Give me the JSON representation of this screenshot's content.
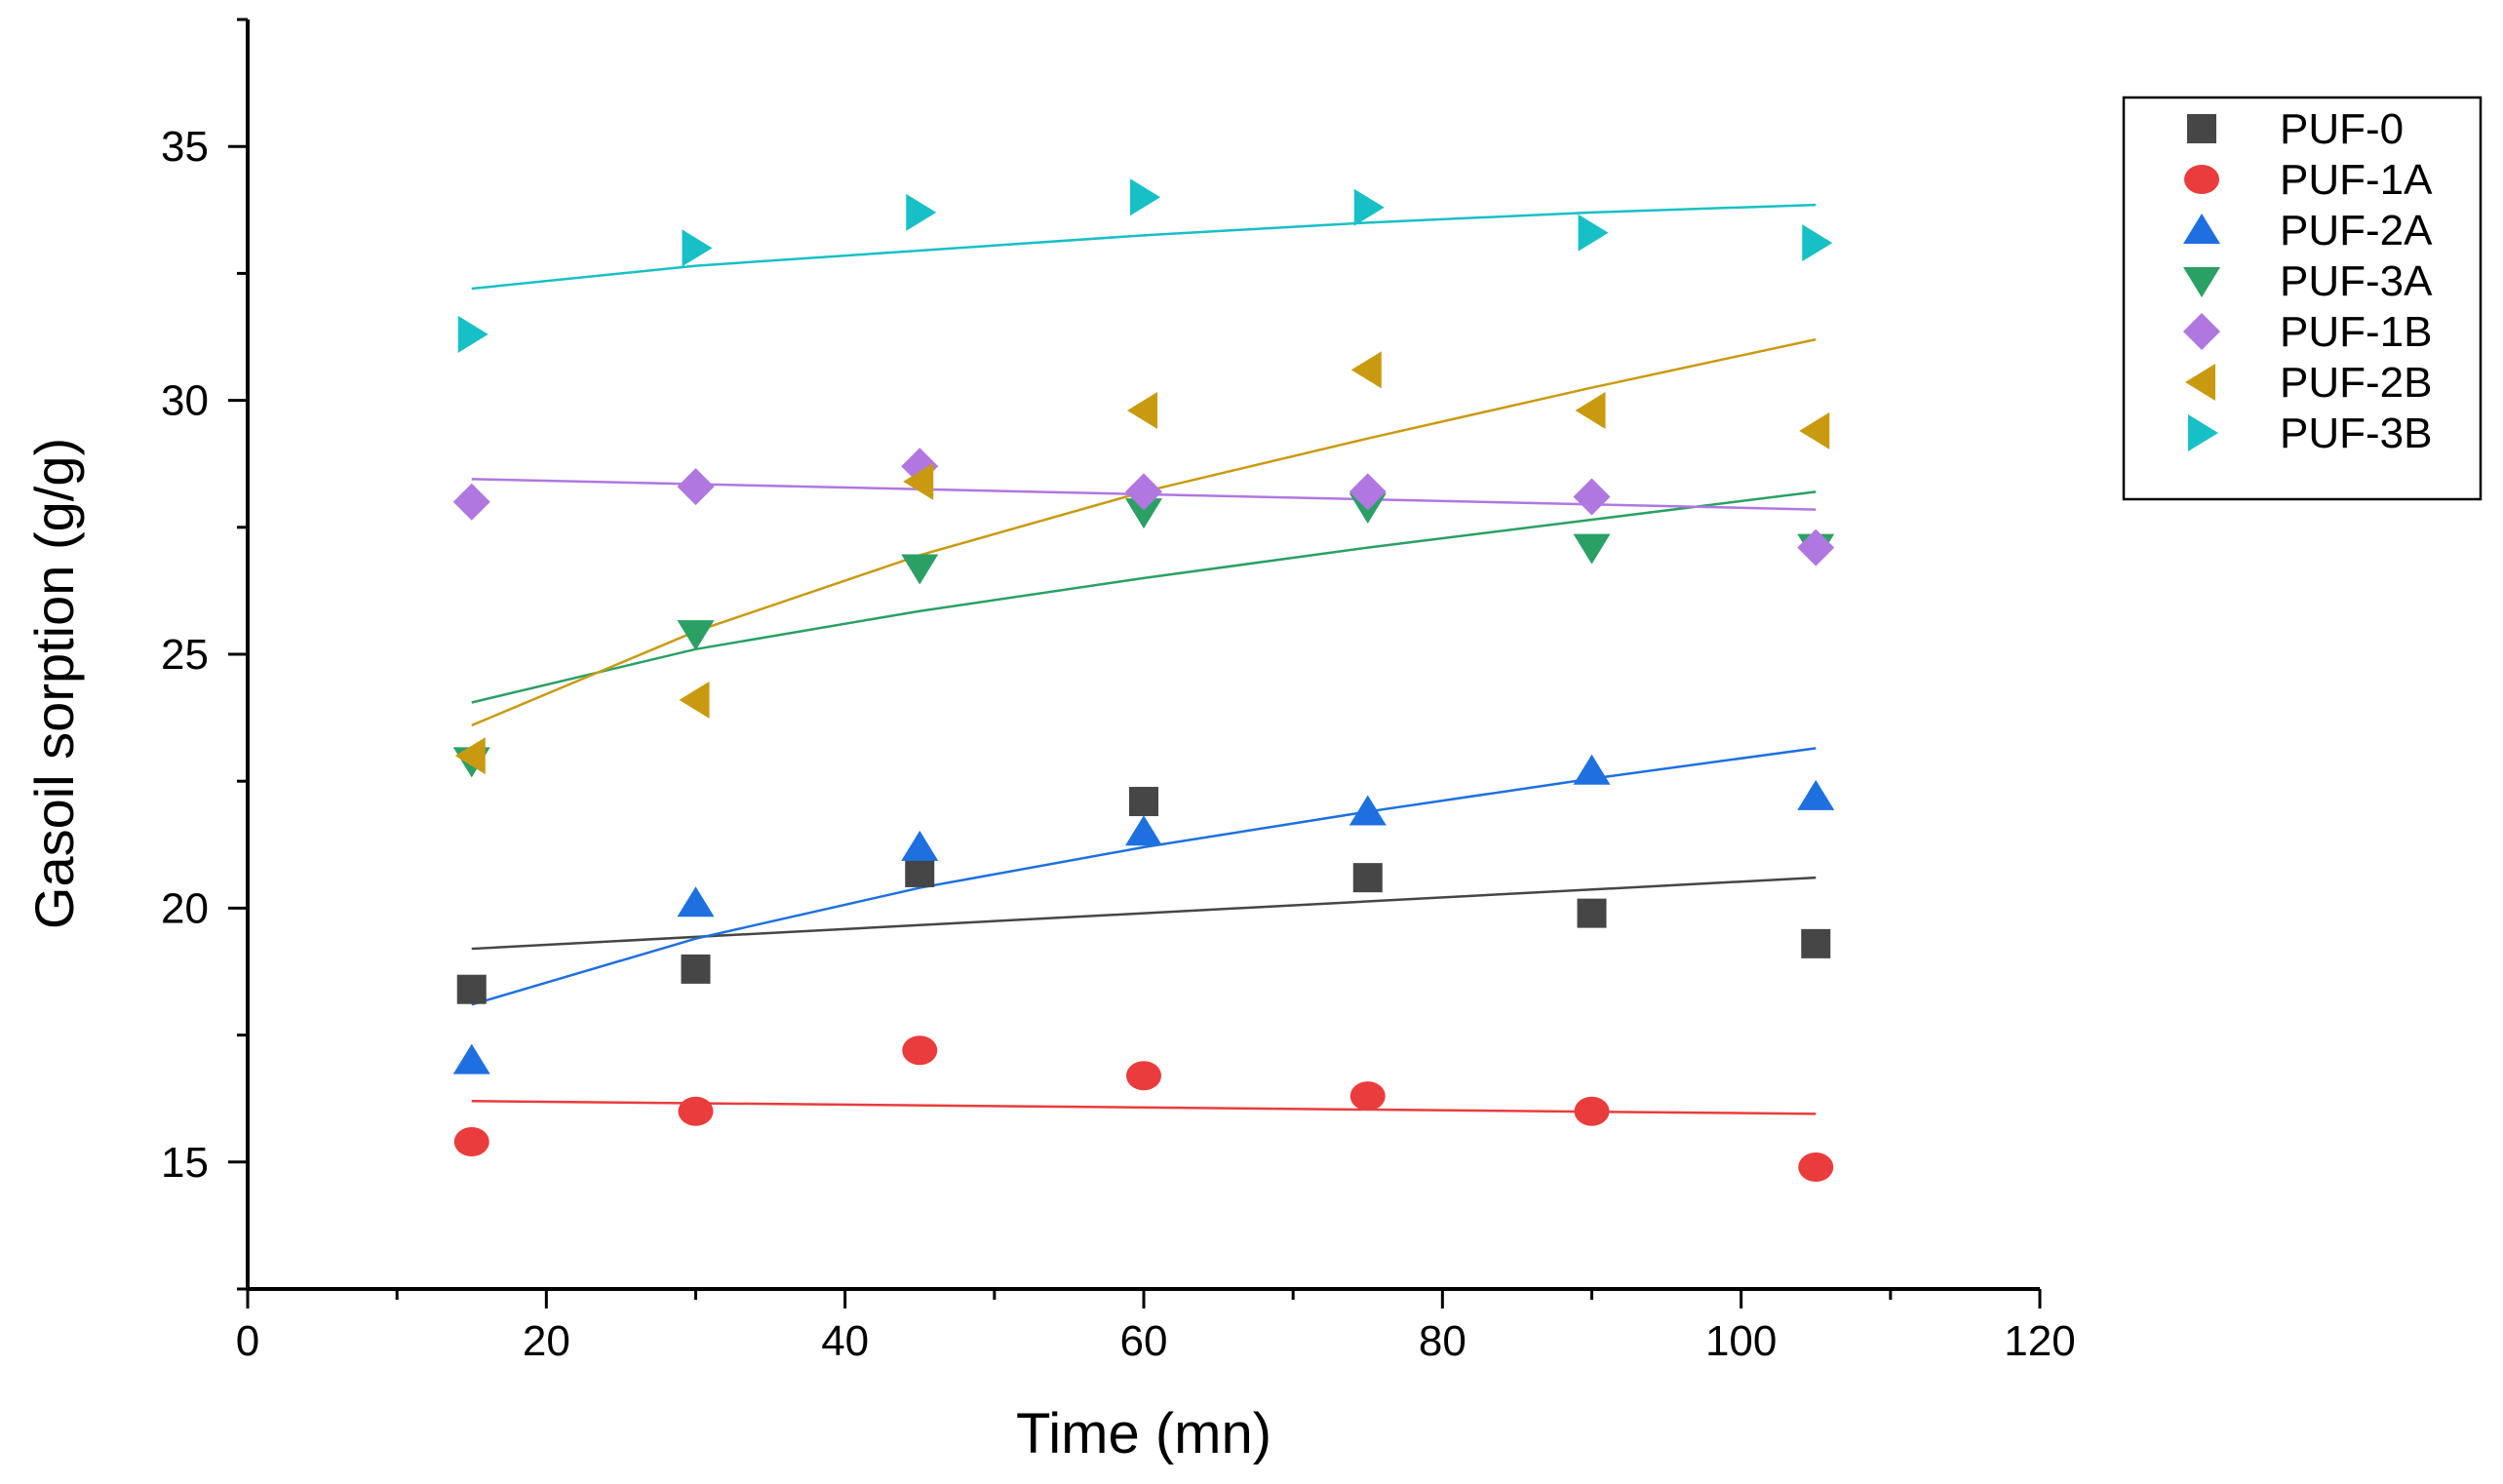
{
  "chart_data": {
    "type": "scatter",
    "title": "",
    "xlabel": "Time (mn)",
    "ylabel": "Gasoil sorption (g/g)",
    "xlim": [
      0,
      120
    ],
    "ylim": [
      12.5,
      37.5
    ],
    "xticks": [
      0,
      20,
      40,
      60,
      80,
      100,
      120
    ],
    "xtick_labels": [
      "0",
      "20",
      "40",
      "60",
      "80",
      "100",
      "120"
    ],
    "yticks": [
      15,
      20,
      25,
      30,
      35
    ],
    "ytick_labels": [
      "15",
      "20",
      "25",
      "30",
      "35"
    ],
    "legend_position": "top-right",
    "grid": false,
    "x": [
      15,
      30,
      45,
      60,
      75,
      90,
      105
    ],
    "series": [
      {
        "name": "PUF-0",
        "marker": "square",
        "color": "#464646",
        "values": [
          18.4,
          18.8,
          20.7,
          22.1,
          20.6,
          19.9,
          19.3
        ],
        "fit": {
          "kind": "linear",
          "x": [
            15,
            105
          ],
          "y": [
            19.2,
            20.6
          ]
        }
      },
      {
        "name": "PUF-1A",
        "marker": "circle",
        "color": "#ea3c3c",
        "values": [
          15.4,
          16.0,
          17.2,
          16.7,
          16.3,
          16.0,
          14.9
        ],
        "fit": {
          "kind": "linear",
          "x": [
            15,
            105
          ],
          "y": [
            16.2,
            15.95
          ]
        }
      },
      {
        "name": "PUF-2A",
        "marker": "triangle-up",
        "color": "#1e70e0",
        "values": [
          17.0,
          20.1,
          21.2,
          21.5,
          21.9,
          22.7,
          22.2
        ],
        "fit": {
          "kind": "curve",
          "x": [
            15,
            30,
            45,
            60,
            75,
            90,
            105
          ],
          "y": [
            18.1,
            19.4,
            20.4,
            21.2,
            21.9,
            22.55,
            23.15
          ]
        }
      },
      {
        "name": "PUF-3A",
        "marker": "triangle-down",
        "color": "#2aa065",
        "values": [
          22.9,
          25.4,
          26.7,
          27.8,
          27.9,
          27.1,
          27.1
        ],
        "fit": {
          "kind": "curve",
          "x": [
            15,
            30,
            45,
            60,
            75,
            90,
            105
          ],
          "y": [
            24.05,
            25.1,
            25.85,
            26.5,
            27.1,
            27.65,
            28.2
          ]
        }
      },
      {
        "name": "PUF-1B",
        "marker": "diamond",
        "color": "#b077e0",
        "values": [
          28.0,
          28.3,
          28.7,
          28.2,
          28.2,
          28.1,
          27.1
        ],
        "fit": {
          "kind": "linear",
          "x": [
            15,
            105
          ],
          "y": [
            28.45,
            27.85
          ]
        }
      },
      {
        "name": "PUF-2B",
        "marker": "triangle-left",
        "color": "#c99a10",
        "values": [
          23.0,
          24.1,
          28.4,
          29.8,
          30.6,
          29.8,
          29.4
        ],
        "fit": {
          "kind": "curve",
          "x": [
            15,
            30,
            45,
            60,
            75,
            90,
            105
          ],
          "y": [
            23.6,
            25.45,
            26.95,
            28.2,
            29.25,
            30.25,
            31.2
          ]
        }
      },
      {
        "name": "PUF-3B",
        "marker": "triangle-right",
        "color": "#17c0c6",
        "values": [
          31.3,
          33.0,
          33.7,
          34.0,
          33.8,
          33.3,
          33.1
        ],
        "fit": {
          "kind": "curve",
          "x": [
            15,
            30,
            45,
            60,
            75,
            90,
            105
          ],
          "y": [
            32.2,
            32.65,
            32.95,
            33.25,
            33.5,
            33.7,
            33.85
          ]
        }
      }
    ]
  }
}
